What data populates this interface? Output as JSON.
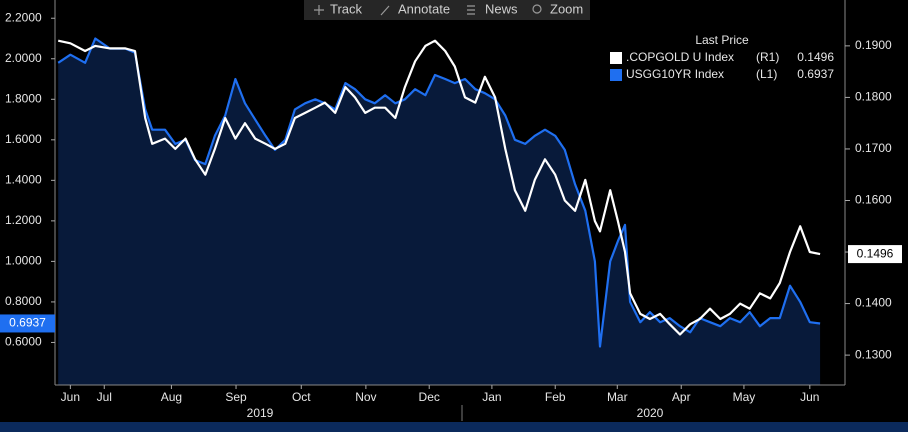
{
  "toolbar": [
    "Track",
    "Annotate",
    "News",
    "Zoom"
  ],
  "chart_data": {
    "type": "line",
    "legend_title": "Last Price",
    "x": [
      0.28,
      0.47,
      0.7,
      0.86,
      1.09,
      1.33,
      1.48,
      1.64,
      1.75,
      1.95,
      2.11,
      2.27,
      2.42,
      2.58,
      2.73,
      2.89,
      3.05,
      3.2,
      3.36,
      3.52,
      3.67,
      3.83,
      3.98,
      4.14,
      4.3,
      4.45,
      4.61,
      4.77,
      4.92,
      5.08,
      5.23,
      5.39,
      5.55,
      5.7,
      5.86,
      6.02,
      6.17,
      6.33,
      6.48,
      6.64,
      6.8,
      6.95,
      7.11,
      7.27,
      7.42,
      7.58,
      7.73,
      7.89,
      8.05,
      8.2,
      8.36,
      8.52,
      8.67,
      8.75,
      8.91,
      9.03,
      9.14,
      9.22,
      9.38,
      9.53,
      9.69,
      9.84,
      10.0,
      10.16,
      10.31,
      10.47,
      10.63,
      10.78,
      10.94,
      11.09,
      11.25,
      11.41,
      11.56,
      11.72,
      11.88,
      12.03,
      12.19
    ],
    "xlim": [
      0.23,
      12.58
    ],
    "xticks": [
      {
        "value": 0.47,
        "label": "Jun"
      },
      {
        "value": 1.0,
        "label": "Jul"
      },
      {
        "value": 2.05,
        "label": "Aug"
      },
      {
        "value": 3.06,
        "label": "Sep"
      },
      {
        "value": 4.08,
        "label": "Oct"
      },
      {
        "value": 5.09,
        "label": "Nov"
      },
      {
        "value": 6.08,
        "label": "Dec"
      },
      {
        "value": 7.06,
        "label": "Jan"
      },
      {
        "value": 8.05,
        "label": "Feb"
      },
      {
        "value": 9.02,
        "label": "Mar"
      },
      {
        "value": 10.02,
        "label": "Apr"
      },
      {
        "value": 11.0,
        "label": "May"
      },
      {
        "value": 12.03,
        "label": "Jun"
      }
    ],
    "years": [
      "2019",
      "2020"
    ],
    "ylim": [
      0.39,
      2.29
    ],
    "yticks": [
      {
        "value": 0.6,
        "label": "0.6000"
      },
      {
        "value": 0.8,
        "label": "0.8000"
      },
      {
        "value": 1.0,
        "label": "1.0000"
      },
      {
        "value": 1.2,
        "label": "1.2000"
      },
      {
        "value": 1.4,
        "label": "1.4000"
      },
      {
        "value": 1.6,
        "label": "1.6000"
      },
      {
        "value": 1.8,
        "label": "1.8000"
      },
      {
        "value": 2.0,
        "label": "2.0000"
      },
      {
        "value": 2.2,
        "label": "2.2000"
      }
    ],
    "y2lim": [
      0.1242,
      0.1989
    ],
    "y2ticks": [
      {
        "value": 0.13,
        "label": "0.1300"
      },
      {
        "value": 0.14,
        "label": "0.1400"
      },
      {
        "value": 0.15,
        "label": "0.1500"
      },
      {
        "value": 0.16,
        "label": "0.1600"
      },
      {
        "value": 0.17,
        "label": "0.1700"
      },
      {
        "value": 0.18,
        "label": "0.1800"
      },
      {
        "value": 0.19,
        "label": "0.1900"
      }
    ],
    "series": [
      {
        "name": ".COPGOLD U Index",
        "tag": "(R1)",
        "axis": "y2",
        "color": "#ffffff",
        "values": [
          0.191,
          0.1905,
          0.189,
          0.19,
          0.1895,
          0.1895,
          0.189,
          0.176,
          0.171,
          0.172,
          0.17,
          0.172,
          0.168,
          0.165,
          0.17,
          0.176,
          0.172,
          0.175,
          0.172,
          0.171,
          0.17,
          0.171,
          0.176,
          0.177,
          0.178,
          0.179,
          0.177,
          0.182,
          0.18,
          0.177,
          0.178,
          0.178,
          0.176,
          0.182,
          0.187,
          0.19,
          0.191,
          0.189,
          0.186,
          0.18,
          0.179,
          0.184,
          0.18,
          0.17,
          0.162,
          0.158,
          0.164,
          0.168,
          0.165,
          0.16,
          0.158,
          0.164,
          0.156,
          0.154,
          0.162,
          0.156,
          0.15,
          0.142,
          0.138,
          0.137,
          0.138,
          0.136,
          0.134,
          0.136,
          0.137,
          0.139,
          0.137,
          0.138,
          0.14,
          0.139,
          0.142,
          0.141,
          0.144,
          0.15,
          0.155,
          0.15,
          0.1496
        ]
      },
      {
        "name": "USGG10YR Index",
        "tag": "(L1)",
        "axis": "y",
        "color": "#1f6ff0",
        "area_color": "#081a3a",
        "values": [
          1.98,
          2.02,
          1.98,
          2.1,
          2.05,
          2.05,
          2.03,
          1.75,
          1.65,
          1.65,
          1.58,
          1.6,
          1.5,
          1.48,
          1.62,
          1.72,
          1.9,
          1.78,
          1.7,
          1.62,
          1.55,
          1.6,
          1.75,
          1.78,
          1.8,
          1.78,
          1.75,
          1.88,
          1.85,
          1.8,
          1.78,
          1.82,
          1.78,
          1.8,
          1.85,
          1.82,
          1.92,
          1.9,
          1.88,
          1.9,
          1.85,
          1.83,
          1.8,
          1.72,
          1.6,
          1.58,
          1.62,
          1.65,
          1.62,
          1.55,
          1.38,
          1.25,
          1.0,
          0.58,
          1.0,
          1.1,
          1.18,
          0.8,
          0.7,
          0.75,
          0.7,
          0.72,
          0.68,
          0.65,
          0.72,
          0.7,
          0.68,
          0.72,
          0.7,
          0.75,
          0.68,
          0.72,
          0.72,
          0.88,
          0.8,
          0.7,
          0.6937
        ]
      }
    ]
  }
}
